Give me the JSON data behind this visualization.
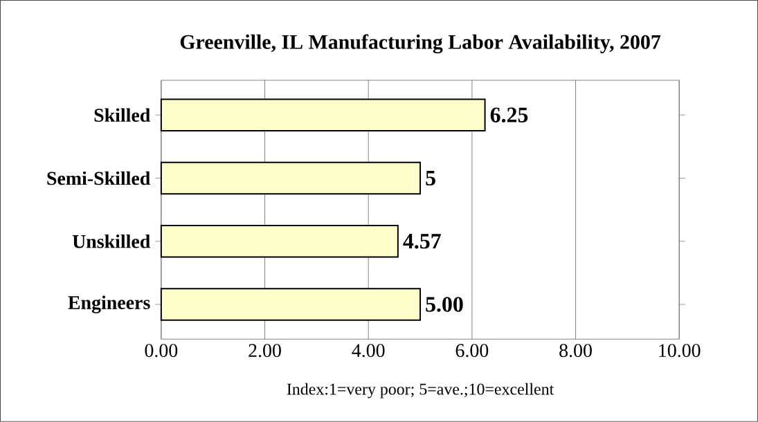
{
  "chart_data": {
    "type": "bar",
    "orientation": "horizontal",
    "title": "Greenville, IL Manufacturing Labor Availability, 2007",
    "xlabel": "Index:1=very poor; 5=ave.;10=excellent",
    "categories": [
      "Skilled",
      "Semi-Skilled",
      "Unskilled",
      "Engineers"
    ],
    "values": [
      6.25,
      5,
      4.57,
      5.0
    ],
    "value_labels": [
      "6.25",
      "5",
      "4.57",
      "5.00"
    ],
    "color": "#ffffcc",
    "xlim": [
      0,
      10
    ],
    "xticks": [
      {
        "value": 0,
        "label": "0.00"
      },
      {
        "value": 2,
        "label": "2.00"
      },
      {
        "value": 4,
        "label": "4.00"
      },
      {
        "value": 6,
        "label": "6.00"
      },
      {
        "value": 8,
        "label": "8.00"
      },
      {
        "value": 10,
        "label": "10.00"
      }
    ],
    "grid": "x"
  }
}
